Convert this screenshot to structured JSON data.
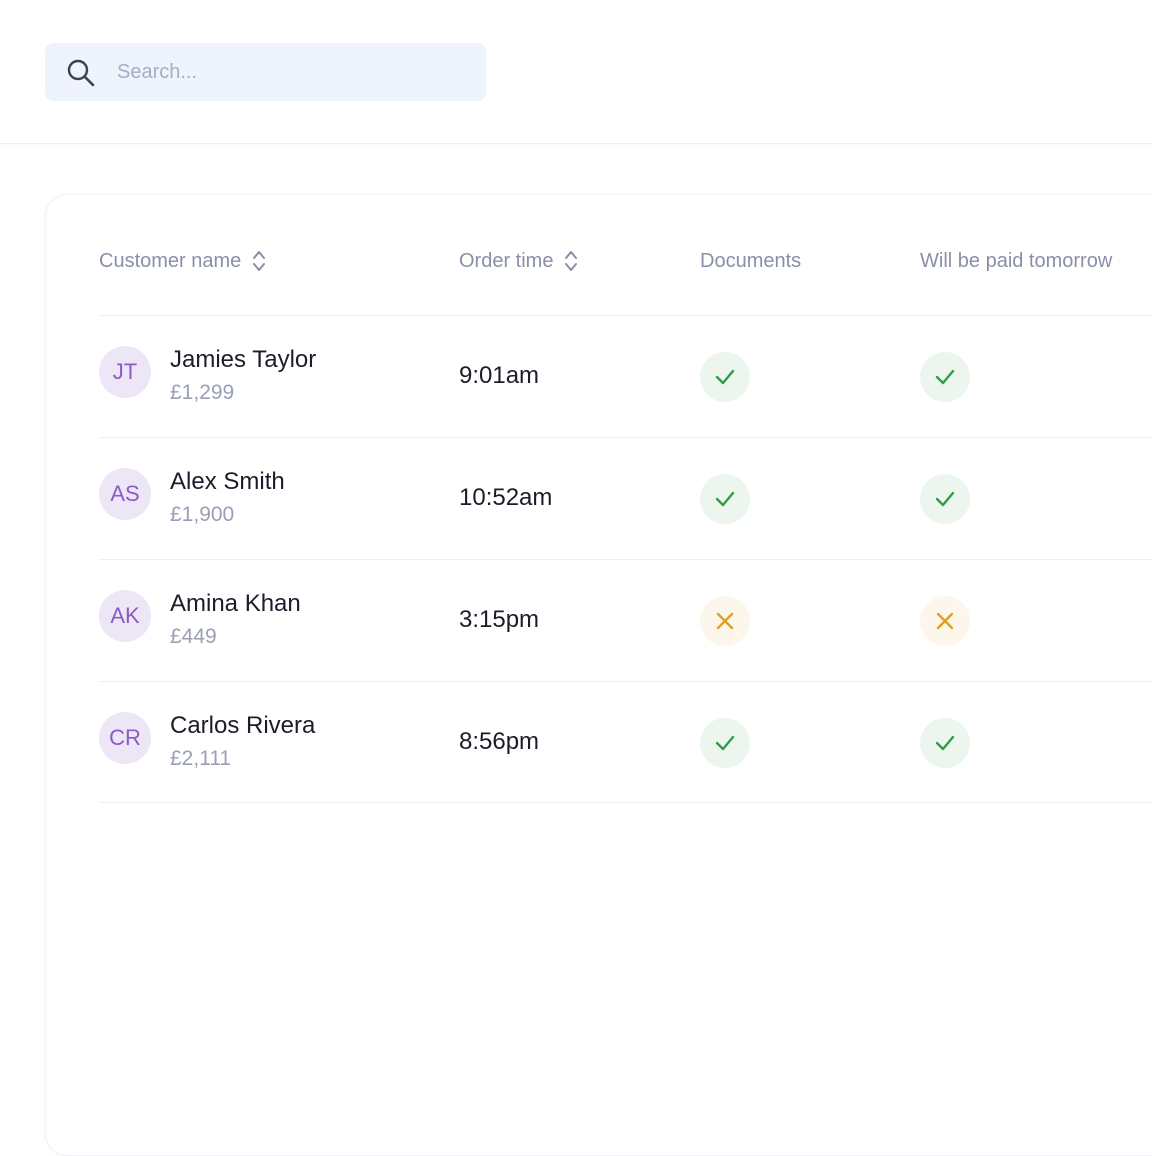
{
  "search": {
    "placeholder": "Search...",
    "value": ""
  },
  "table": {
    "columns": [
      {
        "label": "Customer name",
        "sortable": true
      },
      {
        "label": "Order time",
        "sortable": true
      },
      {
        "label": "Documents",
        "sortable": false
      },
      {
        "label": "Will be paid tomorrow",
        "sortable": false
      }
    ],
    "rows": [
      {
        "initials": "JT",
        "name": "Jamies Taylor",
        "amount": "£1,299",
        "time": "9:01am",
        "documents": true,
        "paid_tomorrow": true
      },
      {
        "initials": "AS",
        "name": "Alex Smith",
        "amount": "£1,900",
        "time": "10:52am",
        "documents": true,
        "paid_tomorrow": true
      },
      {
        "initials": "AK",
        "name": "Amina Khan",
        "amount": "£449",
        "time": "3:15pm",
        "documents": false,
        "paid_tomorrow": false
      },
      {
        "initials": "CR",
        "name": "Carlos Rivera",
        "amount": "£2,111",
        "time": "8:56pm",
        "documents": true,
        "paid_tomorrow": true
      }
    ]
  },
  "colors": {
    "accent_purple": "#8a5cc6",
    "avatar_bg": "#ede6f6",
    "success_green": "#2f9e44",
    "success_bg": "#ecf6ee",
    "warning_orange": "#e0a020",
    "warning_bg": "#fcf7ea"
  },
  "icons": {
    "search": "search-icon",
    "sort": "sort-icon",
    "yes": "check-icon",
    "no": "cross-icon"
  }
}
